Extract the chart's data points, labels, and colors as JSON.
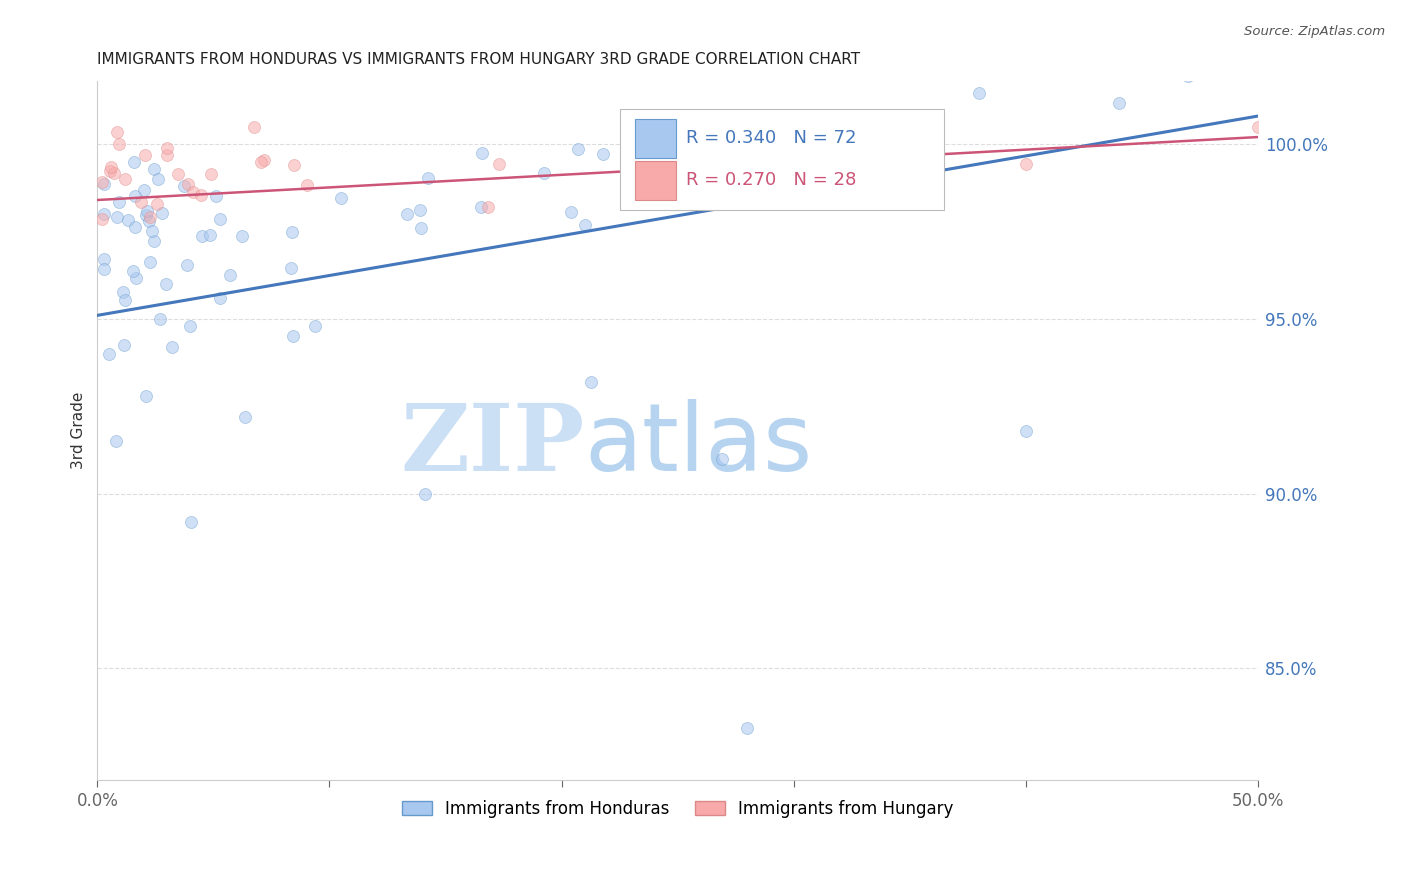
{
  "title": "IMMIGRANTS FROM HONDURAS VS IMMIGRANTS FROM HUNGARY 3RD GRADE CORRELATION CHART",
  "source": "Source: ZipAtlas.com",
  "ylabel": "3rd Grade",
  "xlim": [
    0.0,
    0.5
  ],
  "ylim": [
    0.818,
    1.018
  ],
  "yticks": [
    1.0,
    0.95,
    0.9,
    0.85
  ],
  "ytick_labels": [
    "100.0%",
    "95.0%",
    "90.0%",
    "85.0%"
  ],
  "xticks": [
    0.0,
    0.1,
    0.2,
    0.3,
    0.4,
    0.5
  ],
  "xtick_labels": [
    "0.0%",
    "",
    "",
    "",
    "",
    "50.0%"
  ],
  "legend_label1": "Immigrants from Honduras",
  "legend_label2": "Immigrants from Hungary",
  "blue_scatter_color": "#A8C8F0",
  "blue_scatter_edge": "#6699CC",
  "pink_scatter_color": "#F8AAAA",
  "pink_scatter_edge": "#DD8888",
  "blue_line_color": "#4477BB",
  "pink_line_color": "#CC5577",
  "blue_trend_x0": 0.0,
  "blue_trend_x1": 0.5,
  "blue_trend_y0": 0.951,
  "blue_trend_y1": 1.008,
  "pink_trend_x0": 0.0,
  "pink_trend_x1": 0.5,
  "pink_trend_y0": 0.984,
  "pink_trend_y1": 1.002,
  "marker_size": 75,
  "marker_alpha": 0.55,
  "legend1_R": "R = 0.340",
  "legend1_N": "N = 72",
  "legend2_R": "R = 0.270",
  "legend2_N": "N = 28",
  "legend_text_blue": "#4477BB",
  "legend_text_pink": "#CC5577",
  "watermark_zip_color": "#CCE0F5",
  "watermark_atlas_color": "#AACCEE",
  "right_tick_color": "#4477BB",
  "grid_color": "#DDDDDD"
}
